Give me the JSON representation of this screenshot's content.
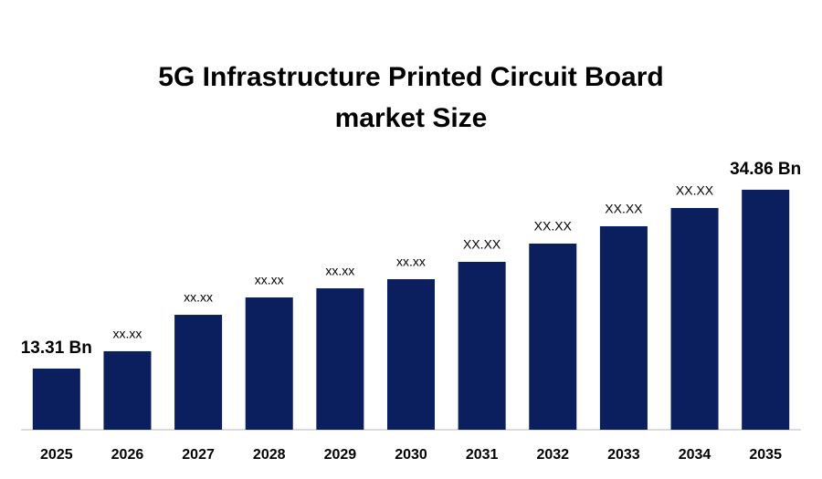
{
  "chart_data": {
    "type": "bar",
    "title": [
      "5G Infrastructure Printed Circuit Board",
      "market Size"
    ],
    "categories": [
      "2025",
      "2026",
      "2027",
      "2028",
      "2029",
      "2030",
      "2031",
      "2032",
      "2033",
      "2034",
      "2035"
    ],
    "values": [
      13.31,
      15.4,
      19.79,
      21.88,
      22.98,
      24.08,
      26.17,
      28.37,
      30.46,
      32.66,
      34.86
    ],
    "value_labels": [
      "13.31 Bn",
      "xx.xx",
      "xx.xx",
      "xx.xx",
      "xx.xx",
      "xx.xx",
      "XX.XX",
      "XX.XX",
      "XX.XX",
      "XX.XX",
      "34.86 Bn"
    ],
    "color": "#0b1f5e",
    "ylim": [
      5.94,
      40
    ]
  }
}
